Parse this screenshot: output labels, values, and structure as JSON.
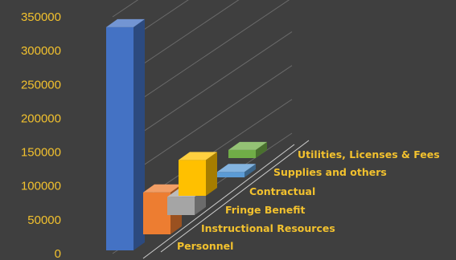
{
  "chart_data": {
    "type": "bar",
    "style": "3d-column",
    "categories": [
      "Personnel",
      "Instructional Resources",
      "Fringe Benefit",
      "Contractual",
      "Supplies and others",
      "Utilities, Licenses & Fees"
    ],
    "series": [
      {
        "values": [
          330000,
          62000,
          27000,
          53000,
          8000,
          12000
        ]
      }
    ],
    "bar_colors": [
      "#4472c4",
      "#ed7d31",
      "#a5a5a5",
      "#ffc000",
      "#5b9bd5",
      "#70ad47"
    ],
    "ylim": [
      0,
      350000
    ],
    "yticks": [
      "0",
      "50000",
      "100000",
      "150000",
      "200000",
      "250000",
      "300000",
      "350000"
    ],
    "grid": true,
    "legend": "none",
    "title": "",
    "xlabel": "",
    "ylabel": ""
  }
}
